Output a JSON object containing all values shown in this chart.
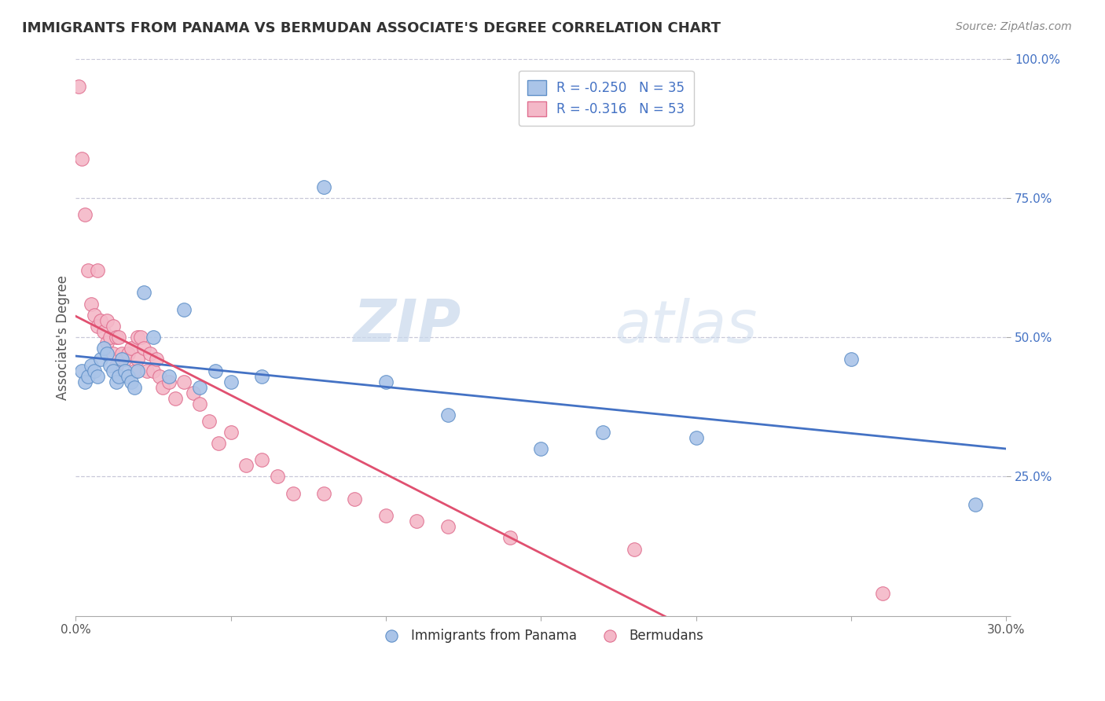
{
  "title": "IMMIGRANTS FROM PANAMA VS BERMUDAN ASSOCIATE'S DEGREE CORRELATION CHART",
  "source_text": "Source: ZipAtlas.com",
  "ylabel": "Associate's Degree",
  "watermark_zip": "ZIP",
  "watermark_atlas": "atlas",
  "xlim": [
    0.0,
    0.3
  ],
  "ylim": [
    0.0,
    1.0
  ],
  "blue_R": -0.25,
  "blue_N": 35,
  "pink_R": -0.316,
  "pink_N": 53,
  "legend_label_blue": "Immigrants from Panama",
  "legend_label_pink": "Bermudans",
  "blue_color": "#aac4e8",
  "pink_color": "#f4b8c8",
  "blue_edge": "#6090c8",
  "pink_edge": "#e07090",
  "line_blue": "#4472c4",
  "line_pink": "#e05070",
  "title_color": "#333333",
  "grid_color": "#c8c8d8",
  "right_tick_color": "#4472c4",
  "blue_points_x": [
    0.002,
    0.003,
    0.004,
    0.005,
    0.006,
    0.007,
    0.008,
    0.009,
    0.01,
    0.011,
    0.012,
    0.013,
    0.014,
    0.015,
    0.016,
    0.017,
    0.018,
    0.019,
    0.02,
    0.022,
    0.025,
    0.03,
    0.035,
    0.04,
    0.045,
    0.05,
    0.06,
    0.08,
    0.1,
    0.12,
    0.15,
    0.17,
    0.2,
    0.25,
    0.29
  ],
  "blue_points_y": [
    0.44,
    0.42,
    0.43,
    0.45,
    0.44,
    0.43,
    0.46,
    0.48,
    0.47,
    0.45,
    0.44,
    0.42,
    0.43,
    0.46,
    0.44,
    0.43,
    0.42,
    0.41,
    0.44,
    0.58,
    0.5,
    0.43,
    0.55,
    0.41,
    0.44,
    0.42,
    0.43,
    0.77,
    0.42,
    0.36,
    0.3,
    0.33,
    0.32,
    0.46,
    0.2
  ],
  "pink_points_x": [
    0.001,
    0.002,
    0.003,
    0.004,
    0.005,
    0.006,
    0.007,
    0.007,
    0.008,
    0.009,
    0.01,
    0.01,
    0.011,
    0.012,
    0.012,
    0.013,
    0.013,
    0.014,
    0.015,
    0.016,
    0.017,
    0.018,
    0.019,
    0.02,
    0.02,
    0.021,
    0.022,
    0.023,
    0.024,
    0.025,
    0.026,
    0.027,
    0.028,
    0.03,
    0.032,
    0.035,
    0.038,
    0.04,
    0.043,
    0.046,
    0.05,
    0.055,
    0.06,
    0.065,
    0.07,
    0.08,
    0.09,
    0.1,
    0.11,
    0.12,
    0.14,
    0.18,
    0.26
  ],
  "pink_points_y": [
    0.95,
    0.82,
    0.72,
    0.62,
    0.56,
    0.54,
    0.52,
    0.62,
    0.53,
    0.51,
    0.49,
    0.53,
    0.5,
    0.52,
    0.47,
    0.5,
    0.45,
    0.5,
    0.47,
    0.46,
    0.47,
    0.48,
    0.44,
    0.46,
    0.5,
    0.5,
    0.48,
    0.44,
    0.47,
    0.44,
    0.46,
    0.43,
    0.41,
    0.42,
    0.39,
    0.42,
    0.4,
    0.38,
    0.35,
    0.31,
    0.33,
    0.27,
    0.28,
    0.25,
    0.22,
    0.22,
    0.21,
    0.18,
    0.17,
    0.16,
    0.14,
    0.12,
    0.04
  ],
  "background_color": "#ffffff"
}
